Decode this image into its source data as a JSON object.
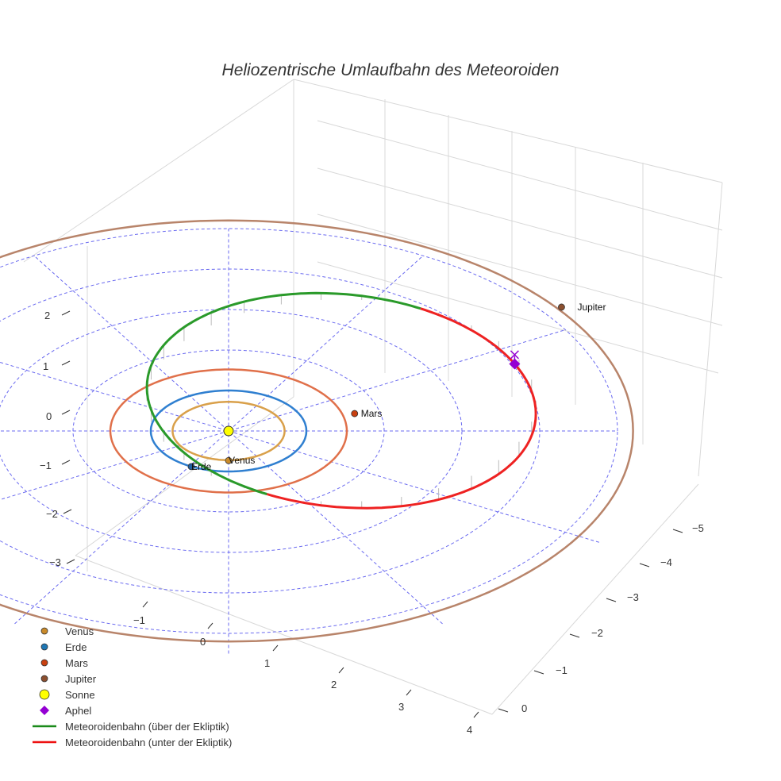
{
  "chart_data": {
    "type": "scatter3d",
    "title": "Heliozentrische Umlaufbahn des Meteoroiden",
    "x_ticks": [
      "−1",
      "0",
      "1",
      "2",
      "3",
      "4"
    ],
    "y_ticks": [
      "−5",
      "−4",
      "−3",
      "−2",
      "−1",
      "0"
    ],
    "z_ticks": [
      "2",
      "1",
      "0",
      "−1",
      "−2",
      "−3"
    ],
    "ecliptic_grid_radii_au": [
      1,
      2,
      3,
      4,
      5
    ],
    "planets": [
      {
        "name": "Venus",
        "orbit_radius_au": 0.72,
        "position_au": [
          0.0,
          -0.73,
          0
        ],
        "color": "#d9a04a",
        "marker": "#c98a2a",
        "label": "Venus"
      },
      {
        "name": "Erde",
        "orbit_radius_au": 1.0,
        "position_au": [
          -0.48,
          -0.88,
          0
        ],
        "color": "#2f7fd0",
        "marker": "#1f5f9f",
        "label": "Erde"
      },
      {
        "name": "Mars",
        "orbit_radius_au": 1.52,
        "position_au": [
          1.62,
          0.43,
          0
        ],
        "color": "#e0704a",
        "marker": "#c84010",
        "label": "Mars"
      },
      {
        "name": "Jupiter",
        "orbit_radius_au": 5.2,
        "position_au": [
          4.28,
          3.06,
          0
        ],
        "color": "#b8846a",
        "marker": "#8b4f2f",
        "label": "Jupiter"
      }
    ],
    "sun": {
      "name": "Sonne",
      "position_au": [
        0,
        0,
        0
      ],
      "color": "#ffff00"
    },
    "meteoroid_orbit": {
      "center_au": [
        1.45,
        0.75
      ],
      "radius_au": 2.5,
      "max_inclination_height_au": 0.6,
      "highest_point_angle_deg": 157.5
    },
    "aphel": {
      "angle_deg": 27,
      "color": "#9400d3"
    },
    "legend": [
      {
        "label": "Venus",
        "type": "dot",
        "color": "#c98a2a"
      },
      {
        "label": "Erde",
        "type": "dot",
        "color": "#1f77b4"
      },
      {
        "label": "Mars",
        "type": "dot",
        "color": "#c84010"
      },
      {
        "label": "Jupiter",
        "type": "dot",
        "color": "#8b4f2f"
      },
      {
        "label": "Sonne",
        "type": "sun",
        "color": "#ffff00"
      },
      {
        "label": "Aphel",
        "type": "diamond",
        "color": "#9400d3"
      },
      {
        "label": "Meteoroidenbahn (über der Ekliptik)",
        "type": "line",
        "color": "#1a8a1a"
      },
      {
        "label": "Meteoroidenbahn (unter der Ekliptik)",
        "type": "line",
        "color": "#ee1111"
      }
    ],
    "legend_position": "bottom-left"
  }
}
